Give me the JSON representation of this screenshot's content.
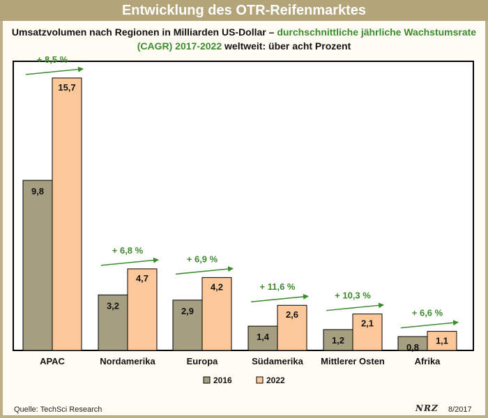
{
  "header": {
    "title": "Entwicklung des OTR-Reifenmarktes",
    "subtitle_part1": "Umsatzvolumen nach Regionen in Milliarden US-Dollar –",
    "subtitle_part2": "durchschnittliche jährliche Wachstumsrate (CAGR) 2017-2022",
    "subtitle_part3": "weltweit: über acht Prozent"
  },
  "chart_data": {
    "type": "bar",
    "categories": [
      "APAC",
      "Nordamerika",
      "Europa",
      "Südamerika",
      "Mittlerer Osten",
      "Afrika"
    ],
    "series": [
      {
        "name": "2016",
        "values": [
          9.8,
          3.2,
          2.9,
          1.4,
          1.2,
          0.8
        ],
        "labels": [
          "9,8",
          "3,2",
          "2,9",
          "1,4",
          "1,2",
          "0,8"
        ],
        "color": "#a59e80"
      },
      {
        "name": "2022",
        "values": [
          15.7,
          4.7,
          4.2,
          2.6,
          2.1,
          1.1
        ],
        "labels": [
          "15,7",
          "4,7",
          "4,2",
          "2,6",
          "2,1",
          "1,1"
        ],
        "color": "#fcc89a"
      }
    ],
    "growth_labels": [
      "+ 8,5 %",
      "+ 6,8 %",
      "+ 6,9 %",
      "+ 11,6 %",
      "+ 10,3 %",
      "+ 6,6 %"
    ],
    "ylim": [
      0,
      16.5
    ],
    "grid": false,
    "legend_position": "bottom",
    "accent_color": "#3c8a2e"
  },
  "footer": {
    "source": "Quelle: TechSci Research",
    "logo": "NRZ",
    "date": "8/2017"
  }
}
